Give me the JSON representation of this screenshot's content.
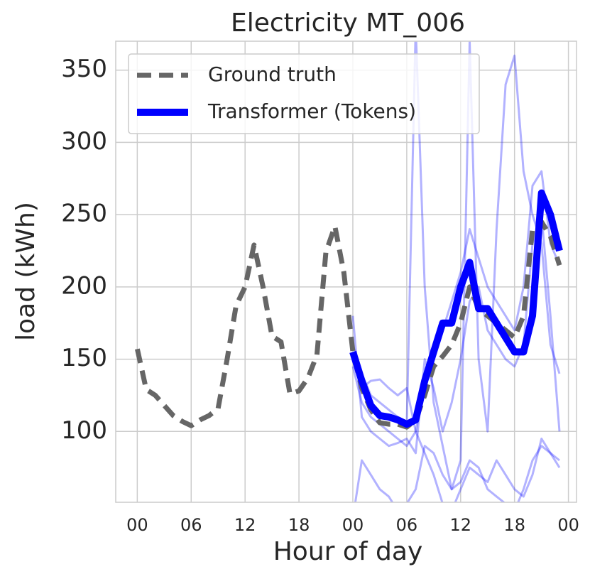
{
  "chart_data": {
    "type": "line",
    "title": "Electricity MT_006",
    "x_label": "Hour of day",
    "y_label": "load (kWh)",
    "x": [
      0,
      1,
      2,
      3,
      4,
      5,
      6,
      7,
      8,
      9,
      10,
      11,
      12,
      13,
      14,
      15,
      16,
      17,
      18,
      19,
      20,
      21,
      22,
      23,
      24,
      25,
      26,
      27,
      28,
      29,
      30,
      31,
      32,
      33,
      34,
      35,
      36,
      37,
      38,
      39,
      40,
      41,
      42,
      43,
      44,
      45,
      46,
      47
    ],
    "xlim": [
      -2.4,
      48.9
    ],
    "xticks": [
      {
        "value": 0,
        "label": "00"
      },
      {
        "value": 6,
        "label": "06"
      },
      {
        "value": 12,
        "label": "12"
      },
      {
        "value": 18,
        "label": "18"
      },
      {
        "value": 24,
        "label": "00"
      },
      {
        "value": 30,
        "label": "06"
      },
      {
        "value": 36,
        "label": "12"
      },
      {
        "value": 42,
        "label": "18"
      },
      {
        "value": 48,
        "label": "00"
      }
    ],
    "ylim": [
      51,
      370
    ],
    "yticks": [
      100,
      150,
      200,
      250,
      300,
      350
    ],
    "grid": true,
    "legend": "upper left",
    "series": [
      {
        "color": "#0000ff",
        "alpha": 0.3,
        "values": [
          null,
          null,
          null,
          null,
          null,
          null,
          null,
          null,
          null,
          null,
          null,
          null,
          null,
          null,
          null,
          null,
          null,
          null,
          null,
          null,
          null,
          null,
          null,
          null,
          145,
          120,
          110,
          105,
          100,
          95,
          90,
          100,
          130,
          150,
          170,
          190,
          210,
          240,
          220,
          200,
          190,
          180,
          170,
          200,
          270,
          280,
          230,
          215
        ]
      },
      {
        "color": "#0000ff",
        "alpha": 0.3,
        "values": [
          null,
          null,
          null,
          null,
          null,
          null,
          null,
          null,
          null,
          null,
          null,
          null,
          null,
          null,
          null,
          null,
          null,
          null,
          null,
          null,
          null,
          null,
          null,
          null,
          160,
          140,
          125,
          120,
          115,
          110,
          105,
          380,
          200,
          120,
          90,
          60,
          80,
          370,
          150,
          100,
          240,
          340,
          360,
          280,
          250,
          230,
          160,
          140
        ]
      },
      {
        "color": "#0000ff",
        "alpha": 0.3,
        "values": [
          null,
          null,
          null,
          null,
          null,
          null,
          null,
          null,
          null,
          null,
          null,
          null,
          null,
          null,
          null,
          null,
          null,
          null,
          null,
          null,
          null,
          null,
          null,
          null,
          40,
          80,
          70,
          60,
          55,
          45,
          50,
          60,
          90,
          85,
          70,
          60,
          65,
          80,
          75,
          60,
          55,
          50,
          45,
          60,
          80,
          90,
          85,
          80
        ]
      },
      {
        "color": "#0000ff",
        "alpha": 0.3,
        "values": [
          null,
          null,
          null,
          null,
          null,
          null,
          null,
          null,
          null,
          null,
          null,
          null,
          null,
          null,
          null,
          null,
          null,
          null,
          null,
          null,
          null,
          null,
          null,
          null,
          150,
          130,
          135,
          136,
          130,
          125,
          130,
          100,
          85,
          70,
          50,
          45,
          60,
          75,
          70,
          65,
          80,
          70,
          60,
          55,
          70,
          95,
          85,
          75
        ]
      },
      {
        "color": "#0000ff",
        "alpha": 0.3,
        "values": [
          null,
          null,
          null,
          null,
          null,
          null,
          null,
          null,
          null,
          null,
          null,
          null,
          null,
          null,
          null,
          null,
          null,
          null,
          null,
          null,
          null,
          null,
          null,
          null,
          180,
          110,
          100,
          95,
          90,
          92,
          95,
          85,
          150,
          130,
          100,
          120,
          150,
          190,
          200,
          170,
          160,
          150,
          145,
          160,
          230,
          250,
          180,
          100
        ]
      },
      {
        "name": "Ground truth",
        "color": "#666666",
        "linestyle": "dashed",
        "values": [
          157,
          129,
          125,
          118,
          111,
          107,
          104,
          108,
          111,
          116,
          150,
          187,
          200,
          229,
          200,
          166,
          162,
          126,
          128,
          137,
          153,
          224,
          242,
          210,
          155,
          130,
          115,
          106,
          105,
          105,
          103,
          108,
          125,
          145,
          152,
          160,
          175,
          200,
          185,
          180,
          175,
          170,
          165,
          180,
          240,
          245,
          235,
          215
        ]
      },
      {
        "name": "Transformer (Tokens)",
        "color": "#0000ff",
        "values": [
          null,
          null,
          null,
          null,
          null,
          null,
          null,
          null,
          null,
          null,
          null,
          null,
          null,
          null,
          null,
          null,
          null,
          null,
          null,
          null,
          null,
          null,
          null,
          null,
          155,
          135,
          118,
          111,
          110,
          108,
          105,
          108,
          135,
          155,
          175,
          175,
          200,
          217,
          185,
          185,
          175,
          165,
          155,
          155,
          180,
          265,
          250,
          225
        ]
      }
    ]
  }
}
